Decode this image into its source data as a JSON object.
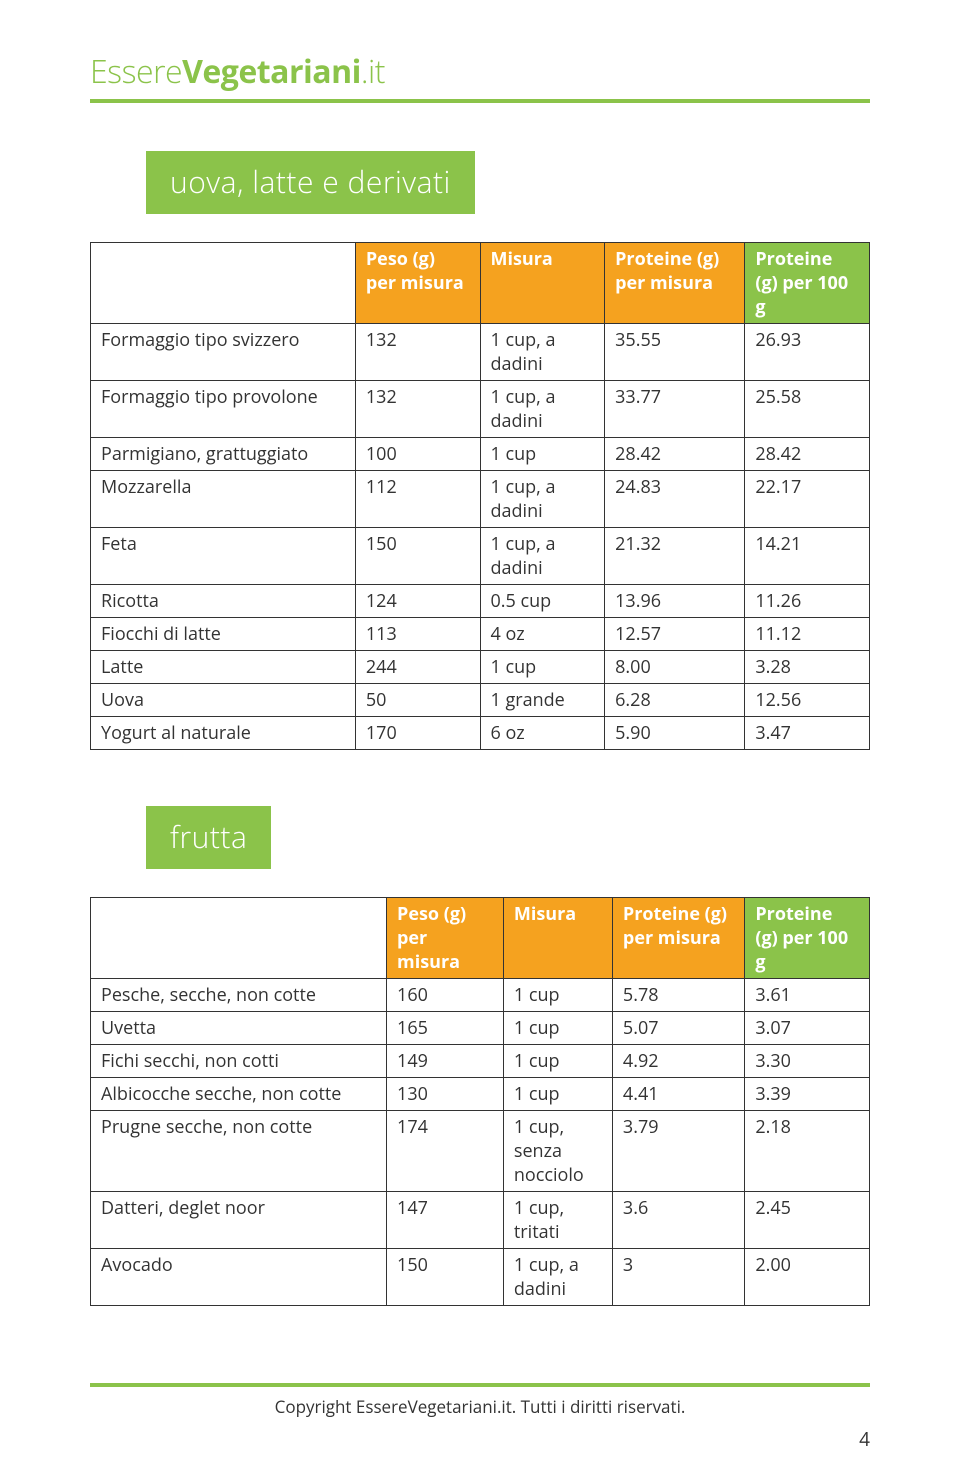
{
  "colors": {
    "accent": "#8bc34a",
    "header_orange": "#f5a21f",
    "header_green": "#8bc34a",
    "text": "#333333",
    "border": "#333333",
    "background": "#ffffff"
  },
  "site_title": {
    "part1": "Essere",
    "part2": "Vegetariani",
    "part3": ".it"
  },
  "section1": {
    "title": "uova, latte e derivati",
    "columns": {
      "peso": {
        "label": "Peso (g) per misura",
        "bg": "#f5a21f"
      },
      "misura": {
        "label": "Misura",
        "bg": "#f5a21f"
      },
      "prot": {
        "label": "Proteine (g) per misura",
        "bg": "#f5a21f"
      },
      "prot100": {
        "label": "Proteine (g) per 100 g",
        "bg": "#8bc34a"
      }
    },
    "rows": [
      {
        "name": "Formaggio tipo svizzero",
        "peso": "132",
        "mis": "1 cup, a dadini",
        "pro": "35.55",
        "p100": "26.93"
      },
      {
        "name": "Formaggio tipo provolone",
        "peso": "132",
        "mis": "1 cup, a dadini",
        "pro": "33.77",
        "p100": "25.58"
      },
      {
        "name": "Parmigiano, grattuggiato",
        "peso": "100",
        "mis": "1 cup",
        "pro": "28.42",
        "p100": "28.42"
      },
      {
        "name": "Mozzarella",
        "peso": "112",
        "mis": "1 cup, a dadini",
        "pro": "24.83",
        "p100": "22.17"
      },
      {
        "name": "Feta",
        "peso": "150",
        "mis": "1 cup, a dadini",
        "pro": "21.32",
        "p100": "14.21"
      },
      {
        "name": "Ricotta",
        "peso": "124",
        "mis": "0.5 cup",
        "pro": "13.96",
        "p100": "11.26"
      },
      {
        "name": "Fiocchi di latte",
        "peso": "113",
        "mis": "4 oz",
        "pro": "12.57",
        "p100": "11.12"
      },
      {
        "name": "Latte",
        "peso": "244",
        "mis": "1 cup",
        "pro": "8.00",
        "p100": "3.28"
      },
      {
        "name": "Uova",
        "peso": "50",
        "mis": "1 grande",
        "pro": "6.28",
        "p100": "12.56"
      },
      {
        "name": "Yogurt al naturale",
        "peso": "170",
        "mis": "6 oz",
        "pro": "5.90",
        "p100": "3.47"
      }
    ]
  },
  "section2": {
    "title": "frutta",
    "columns": {
      "peso": {
        "label": "Peso (g) per misura",
        "bg": "#f5a21f"
      },
      "misura": {
        "label": "Misura",
        "bg": "#f5a21f"
      },
      "prot": {
        "label": "Proteine (g) per misura",
        "bg": "#f5a21f"
      },
      "prot100": {
        "label": "Proteine (g) per 100 g",
        "bg": "#8bc34a"
      }
    },
    "rows": [
      {
        "name": "Pesche, secche, non cotte",
        "peso": "160",
        "mis": "1 cup",
        "pro": "5.78",
        "p100": "3.61"
      },
      {
        "name": "Uvetta",
        "peso": "165",
        "mis": "1 cup",
        "pro": "5.07",
        "p100": "3.07"
      },
      {
        "name": "Fichi secchi, non cotti",
        "peso": "149",
        "mis": "1 cup",
        "pro": "4.92",
        "p100": "3.30"
      },
      {
        "name": "Albicocche secche, non cotte",
        "peso": "130",
        "mis": "1 cup",
        "pro": "4.41",
        "p100": "3.39"
      },
      {
        "name": "Prugne secche, non cotte",
        "peso": "174",
        "mis": "1 cup, senza nocciolo",
        "pro": "3.79",
        "p100": "2.18"
      },
      {
        "name": "Datteri, deglet noor",
        "peso": "147",
        "mis": "1 cup, tritati",
        "pro": "3.6",
        "p100": "2.45"
      },
      {
        "name": "Avocado",
        "peso": "150",
        "mis": "1 cup, a dadini",
        "pro": "3",
        "p100": "2.00"
      }
    ]
  },
  "footer": {
    "copyright": "Copyright EssereVegetariani.it. Tutti i diritti riservati."
  },
  "page_number": "4"
}
